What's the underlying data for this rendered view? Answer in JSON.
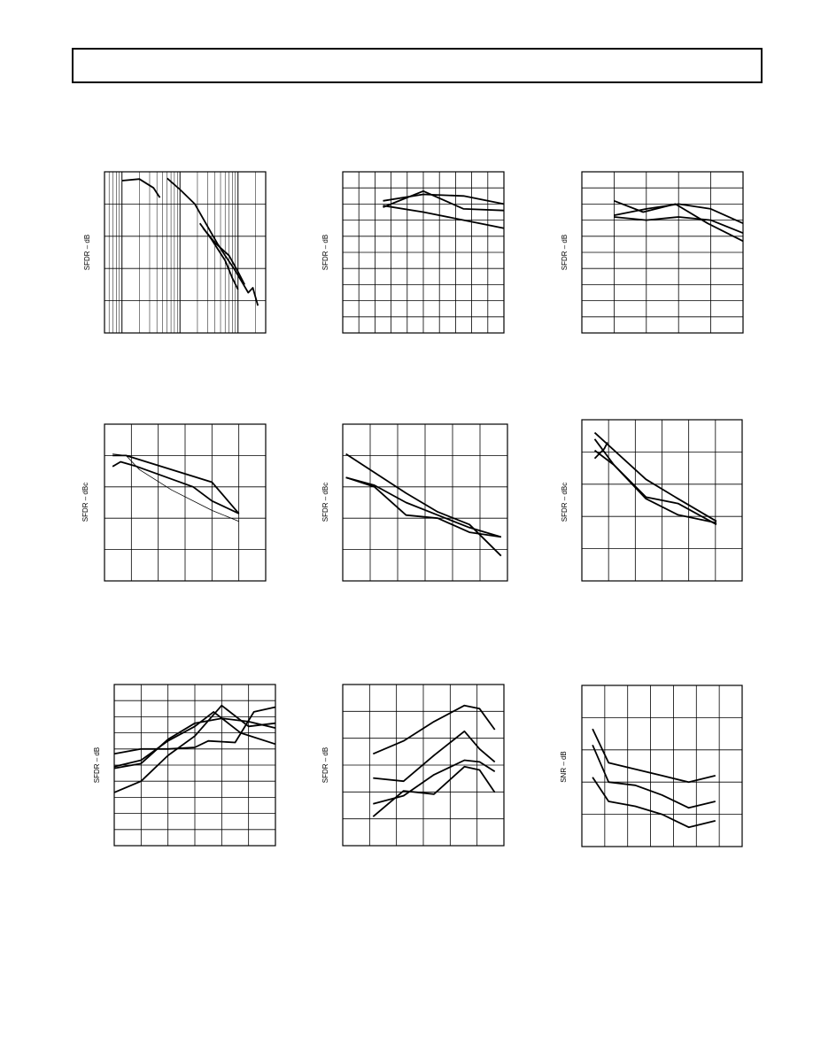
{
  "chart_data": [
    {
      "type": "line",
      "ylabel": "SFDR – dB",
      "xscale": "log",
      "series": [
        {
          "x": [
            1,
            2,
            3.5,
            4.5
          ],
          "y": [
            94.5,
            95.5,
            90,
            84
          ]
        },
        {
          "x": [
            6,
            10,
            18,
            30,
            45,
            60,
            85,
            120,
            150,
            180,
            220
          ],
          "y": [
            96,
            89,
            80,
            66,
            55,
            48,
            40,
            31,
            25,
            28,
            17
          ]
        },
        {
          "x": [
            22,
            35,
            60,
            80,
            100
          ],
          "y": [
            68,
            58,
            45,
            34,
            27
          ]
        },
        {
          "x": [
            25,
            40,
            70,
            100,
            130
          ],
          "y": [
            65,
            56,
            48,
            38,
            30
          ]
        }
      ],
      "xlim": [
        0.5,
        300
      ],
      "ylim": [
        0,
        100
      ],
      "grid": true
    },
    {
      "type": "line",
      "ylabel": "SFDR – dB",
      "series": [
        {
          "x": [
            2.5,
            5,
            7.5,
            10
          ],
          "y": [
            82,
            86,
            85,
            80
          ]
        },
        {
          "x": [
            2.5,
            5,
            7.5,
            10
          ],
          "y": [
            79,
            75,
            70,
            65
          ]
        },
        {
          "x": [
            2.5,
            5,
            7.5,
            10
          ],
          "y": [
            78,
            88,
            77,
            76
          ]
        }
      ],
      "xlim": [
        0,
        10
      ],
      "ylim": [
        0,
        100
      ],
      "grid": true
    },
    {
      "type": "line",
      "ylabel": "SFDR – dB",
      "series": [
        {
          "x": [
            1,
            1.9,
            2.9,
            3.9,
            5
          ],
          "y": [
            82,
            75,
            80,
            68,
            57
          ]
        },
        {
          "x": [
            1,
            2,
            3,
            4,
            5
          ],
          "y": [
            73,
            77,
            80,
            77,
            68
          ]
        },
        {
          "x": [
            1,
            2,
            3,
            4,
            5
          ],
          "y": [
            72,
            70,
            72,
            70,
            62
          ]
        }
      ],
      "xlim": [
        0,
        5
      ],
      "ylim": [
        0,
        100
      ],
      "grid": true
    },
    {
      "type": "line",
      "ylabel": "SFDR – dBc",
      "series": [
        {
          "x": [
            0.3,
            0.8,
            4,
            5
          ],
          "y": [
            80,
            80,
            63,
            43
          ]
        },
        {
          "x": [
            0.3,
            0.6,
            1.2,
            3.3,
            4,
            5
          ],
          "y": [
            73,
            76,
            73,
            60,
            51,
            43
          ]
        },
        {
          "x": [
            0.3,
            0.8,
            1.3,
            2.5,
            4,
            5
          ],
          "y": [
            81,
            80,
            71,
            58,
            45,
            38
          ]
        }
      ],
      "xlim": [
        0,
        6
      ],
      "ylim": [
        0,
        100
      ],
      "grid": true
    },
    {
      "type": "line",
      "ylabel": "SFDR – dBc",
      "series": [
        {
          "x": [
            0.1,
            2,
            3,
            4,
            5
          ],
          "y": [
            81,
            56,
            44,
            36,
            16
          ]
        },
        {
          "x": [
            0.1,
            1,
            2,
            3,
            4,
            5
          ],
          "y": [
            66,
            60,
            42,
            40,
            31,
            28
          ]
        },
        {
          "x": [
            0.1,
            1,
            2,
            3,
            4,
            5
          ],
          "y": [
            66,
            61,
            50,
            42,
            34,
            28
          ]
        }
      ],
      "xlim": [
        0,
        5.2
      ],
      "ylim": [
        0,
        100
      ],
      "grid": true
    },
    {
      "type": "line",
      "ylabel": "SFDR – dBc",
      "series": [
        {
          "x": [
            0.4,
            2,
            3,
            4.2
          ],
          "y": [
            92,
            63,
            51,
            37
          ]
        },
        {
          "x": [
            0.4,
            1,
            2,
            3,
            4.2
          ],
          "y": [
            81,
            72,
            52,
            48,
            35
          ]
        },
        {
          "x": [
            0.4,
            1,
            2,
            3,
            4.2
          ],
          "y": [
            88,
            72,
            51,
            41,
            36
          ]
        },
        {
          "x": [
            0.4,
            0.7,
            0.8
          ],
          "y": [
            76,
            82,
            86
          ]
        }
      ],
      "xlim": [
        0,
        5
      ],
      "ylim": [
        0,
        100
      ],
      "grid": true
    },
    {
      "type": "line",
      "ylabel": "SFDR – dB",
      "series": [
        {
          "x": [
            0,
            1,
            2,
            3,
            4,
            5,
            6
          ],
          "y": [
            33,
            40,
            56,
            68,
            87,
            74,
            76
          ]
        },
        {
          "x": [
            0,
            1,
            2,
            3,
            3.7,
            4.7,
            6
          ],
          "y": [
            49,
            53,
            65,
            74,
            83,
            70,
            63
          ]
        },
        {
          "x": [
            0,
            1,
            2,
            3,
            4,
            5,
            6
          ],
          "y": [
            48,
            51,
            66,
            76,
            79,
            77,
            73
          ]
        },
        {
          "x": [
            0,
            1,
            2,
            3,
            3.5,
            4.5,
            5.2,
            6
          ],
          "y": [
            57,
            60,
            60,
            61,
            65,
            64,
            83,
            86
          ]
        }
      ],
      "xlim": [
        0,
        6
      ],
      "ylim": [
        0,
        100
      ],
      "grid": true
    },
    {
      "type": "line",
      "ylabel": "SFDR – dB",
      "series": [
        {
          "x": [
            1,
            2,
            3,
            4,
            4.5,
            5
          ],
          "y": [
            57,
            65,
            77,
            87,
            85,
            72
          ]
        },
        {
          "x": [
            1,
            2,
            3,
            4,
            4.5,
            5
          ],
          "y": [
            42,
            40,
            56,
            71,
            60,
            52
          ]
        },
        {
          "x": [
            1,
            2,
            3,
            4,
            4.5,
            5
          ],
          "y": [
            26,
            31,
            44,
            53,
            52,
            46
          ]
        },
        {
          "x": [
            1,
            2,
            3,
            4,
            4.5,
            5
          ],
          "y": [
            18,
            34,
            32,
            49,
            47,
            33
          ]
        }
      ],
      "xlim": [
        0,
        5.3
      ],
      "ylim": [
        0,
        100
      ],
      "grid": true
    },
    {
      "type": "line",
      "ylabel": "SNR – dB",
      "series": [
        {
          "x": [
            0.4,
            1,
            2,
            3,
            4,
            5
          ],
          "y": [
            73,
            52,
            48,
            44,
            40,
            44
          ]
        },
        {
          "x": [
            0.4,
            1,
            2,
            3,
            4,
            5
          ],
          "y": [
            63,
            40,
            38,
            32,
            24,
            28
          ]
        },
        {
          "x": [
            0.4,
            1,
            2,
            3,
            4,
            5
          ],
          "y": [
            43,
            28,
            25,
            20,
            12,
            16
          ]
        }
      ],
      "xlim": [
        0,
        6
      ],
      "ylim": [
        0,
        100
      ],
      "grid": true
    }
  ]
}
